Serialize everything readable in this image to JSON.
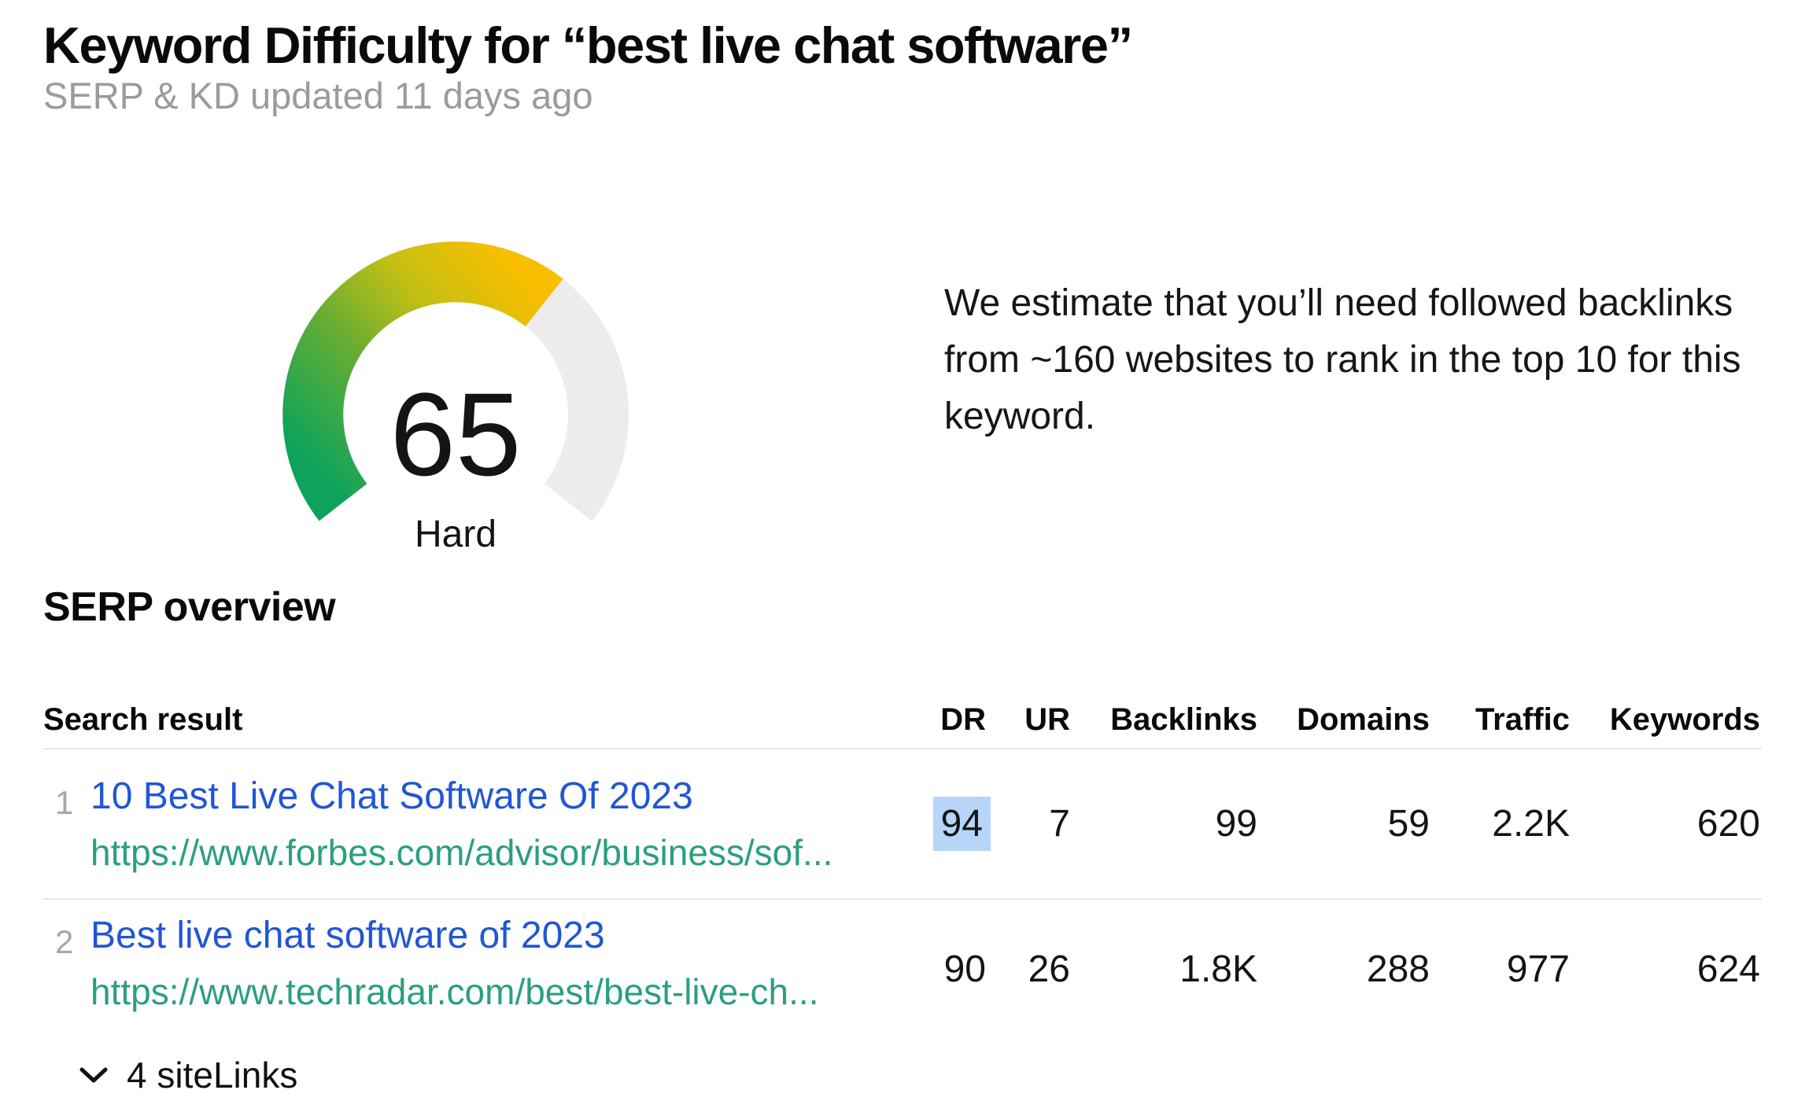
{
  "page": {
    "title": "Keyword Difficulty for “best live chat software”",
    "subtitle": "SERP & KD updated 11 days ago"
  },
  "gauge": {
    "value": 65,
    "max": 100,
    "label": "Hard",
    "start_bearing_deg": 232,
    "sweep_deg": 256,
    "track_color": "#ececec",
    "gradient": [
      "#0da35c",
      "#66ad33",
      "#c3bf14",
      "#f9be00"
    ]
  },
  "estimate_text": "We estimate that you’ll need followed backlinks from ~160 websites to rank in the top 10 for this keyword.",
  "serp": {
    "heading": "SERP overview",
    "columns": {
      "search_result": "Search result",
      "dr": "DR",
      "ur": "UR",
      "backlinks": "Backlinks",
      "domains": "Domains",
      "traffic": "Traffic",
      "keywords": "Keywords"
    },
    "rows": [
      {
        "index": "1",
        "title": "10 Best Live Chat Software Of 2023",
        "url": "https://www.forbes.com/advisor/business/sof...",
        "dr": "94",
        "dr_highlighted": true,
        "ur": "7",
        "backlinks": "99",
        "domains": "59",
        "traffic": "2.2K",
        "keywords": "620"
      },
      {
        "index": "2",
        "title": "Best live chat software of 2023",
        "url": "https://www.techradar.com/best/best-live-ch...",
        "dr": "90",
        "ur": "26",
        "backlinks": "1.8K",
        "domains": "288",
        "traffic": "977",
        "keywords": "624",
        "sitelinks_label": "4 siteLinks"
      }
    ]
  },
  "colors": {
    "link_blue": "#2156d4",
    "url_teal": "#2b9f7e",
    "dr_highlight": "#b7d4f9",
    "divider": "#e8e8e8",
    "muted_text": "#9b9b9b"
  },
  "chart_data": {
    "type": "gauge",
    "title": "Keyword Difficulty",
    "value": 65,
    "range": [
      0,
      100
    ],
    "label": "Hard",
    "fill_gradient": [
      "#0da35c",
      "#66ad33",
      "#c3bf14",
      "#f9be00"
    ],
    "track_color": "#ececec"
  }
}
